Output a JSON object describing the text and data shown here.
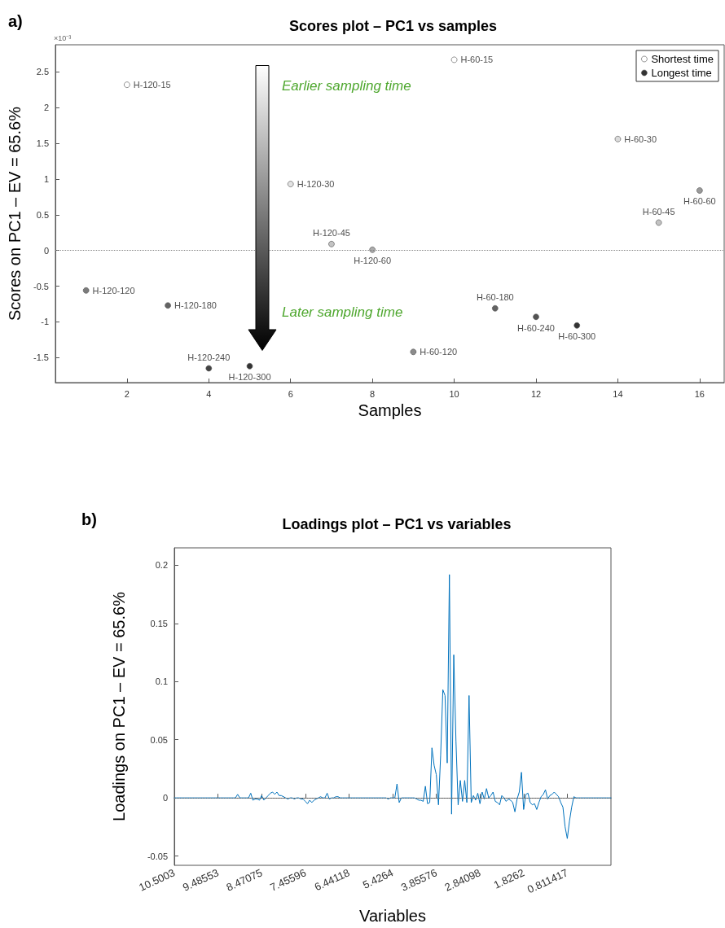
{
  "chart_data": [
    {
      "type": "scatter",
      "title": "Scores plot – PC1 vs samples",
      "xlabel": "Samples",
      "ylabel": "Scores on PC1 – EV = 65.6%",
      "annotations": [
        "a)",
        "×10⁻³",
        "Earlier sampling time",
        "Later sampling time"
      ],
      "series": [
        {
          "name": "Shortest time",
          "color": "#ffffff",
          "x": [
            2,
            10
          ],
          "values": [
            2.32,
            2.67
          ],
          "value_labels": [
            "H-120-15",
            "H-60-15"
          ]
        },
        {
          "name": "Longest time",
          "color": "#000000",
          "x": [
            5,
            13
          ],
          "values": [
            -1.62,
            -1.05
          ],
          "value_labels": [
            "H-120-300",
            "H-60-300"
          ]
        },
        {
          "x": [
            1,
            3,
            4,
            6,
            7,
            8,
            9,
            11,
            12,
            14,
            15,
            16
          ],
          "values": [
            -0.56,
            -0.77,
            -1.65,
            0.93,
            0.09,
            0.01,
            -1.42,
            -0.81,
            -0.93,
            1.56,
            0.39,
            0.84
          ],
          "colors": [
            "#5a5a5a",
            "#3c3c3c",
            "#141414",
            "#dcdcdc",
            "#b4b4b4",
            "#969696",
            "#6e6e6e",
            "#3c3c3c",
            "#282828",
            "#d2d2d2",
            "#b4b4b4",
            "#828282"
          ],
          "value_labels": [
            "H-120-120",
            "H-120-180",
            "H-120-240",
            "H-120-30",
            "H-120-45",
            "H-120-60",
            "H-60-120",
            "H-60-180",
            "H-60-240",
            "H-60-30",
            "H-60-45",
            "H-60-60"
          ]
        }
      ],
      "xlim": [
        0.25,
        16.6
      ],
      "xticks": [
        2,
        4,
        6,
        8,
        10,
        12,
        14,
        16
      ],
      "ylim": [
        -1.85,
        2.88
      ],
      "yticks": [
        -1.5,
        -1,
        -0.5,
        0,
        0.5,
        1,
        1.5,
        2,
        2.5
      ],
      "ref_lines": [
        {
          "axis": "y",
          "value": 0,
          "color": "#808080",
          "line_style": "dotted"
        }
      ],
      "marker": "circle",
      "legend": "top right",
      "grid": false
    },
    {
      "type": "line",
      "title": "Loadings plot – PC1 vs variables",
      "xlabel": "Variables",
      "ylabel": "Loadings on PC1 – EV = 65.6%",
      "annotations": [
        "b)"
      ],
      "categories": [
        "10.5003",
        null,
        null,
        null,
        null,
        null,
        null,
        null,
        null,
        null,
        null,
        null,
        null,
        null,
        null,
        null,
        null,
        null,
        null,
        null,
        "9.48553",
        null,
        null,
        null,
        null,
        null,
        null,
        null,
        null,
        null,
        null,
        null,
        null,
        null,
        null,
        null,
        null,
        null,
        null,
        null,
        "8.47075",
        null,
        null,
        null,
        null,
        null,
        null,
        null,
        null,
        null,
        null,
        null,
        null,
        null,
        null,
        null,
        null,
        null,
        null,
        null,
        "7.45596",
        null,
        null,
        null,
        null,
        null,
        null,
        null,
        null,
        null,
        null,
        null,
        null,
        null,
        null,
        null,
        null,
        null,
        null,
        null,
        "6.44118",
        null,
        null,
        null,
        null,
        null,
        null,
        null,
        null,
        null,
        null,
        null,
        null,
        null,
        null,
        null,
        null,
        null,
        null,
        null,
        "5.4264",
        null,
        null,
        null,
        null,
        null,
        null,
        null,
        null,
        null,
        null,
        null,
        null,
        null,
        null,
        null,
        null,
        null,
        null,
        null,
        "3.85576",
        null,
        null,
        null,
        null,
        null,
        null,
        null,
        null,
        null,
        null,
        null,
        null,
        null,
        null,
        null,
        null,
        null,
        null,
        null,
        "2.84098",
        null,
        null,
        null,
        null,
        null,
        null,
        null,
        null,
        null,
        null,
        null,
        null,
        null,
        null,
        null,
        null,
        null,
        null,
        null,
        "1.8262",
        null,
        null,
        null,
        null,
        null,
        null,
        null,
        null,
        null,
        null,
        null,
        null,
        null,
        null,
        null,
        null,
        null,
        null,
        null,
        "0.811417",
        null,
        null,
        null,
        null,
        null,
        null,
        null,
        null,
        null,
        null,
        null,
        null,
        null,
        null,
        null,
        null,
        null,
        null,
        null,
        null
      ],
      "series": [
        {
          "color": "#0072bd",
          "values": [
            0,
            0,
            0,
            0,
            0,
            0,
            0,
            0,
            0,
            0,
            0,
            0,
            0,
            0,
            0,
            0,
            0,
            0,
            0,
            0,
            0,
            0,
            0,
            0,
            0,
            0,
            0,
            0,
            0,
            0.003,
            0,
            0,
            0,
            0,
            0,
            0.004,
            -0.002,
            -0.001,
            -0.001,
            -0.002,
            0.002,
            -0.002,
            0,
            0.002,
            0.004,
            0.005,
            0.003,
            0.005,
            0.002,
            0.002,
            0.001,
            0,
            -0.001,
            0,
            0,
            -0.001,
            0,
            0,
            -0.001,
            -0.001,
            -0.003,
            -0.005,
            -0.002,
            -0.004,
            -0.002,
            -0.001,
            0,
            0.001,
            0,
            0,
            0.004,
            -0.001,
            0,
            0,
            0.001,
            0.001,
            0,
            0,
            0,
            0,
            0,
            0,
            0,
            0,
            0,
            0,
            0,
            0,
            0,
            0,
            0,
            0,
            0,
            0,
            0,
            0,
            0,
            0,
            -0.001,
            0,
            0,
            0,
            0.012,
            -0.004,
            0,
            0,
            0,
            0,
            0,
            0,
            0,
            -0.001,
            -0.002,
            -0.002,
            -0.003,
            0.01,
            -0.005,
            -0.004,
            0.043,
            0.028,
            0.02,
            -0.006,
            0.037,
            0.093,
            0.088,
            0.03,
            0.192,
            -0.014,
            0.123,
            0.049,
            -0.006,
            0.015,
            -0.003,
            0.015,
            -0.004,
            0.088,
            -0.004,
            0.002,
            -0.002,
            0.004,
            -0.005,
            0.005,
            -0.001,
            0.008,
            0,
            0.002,
            0.005,
            -0.003,
            -0.004,
            -0.006,
            0.002,
            0,
            -0.003,
            -0.001,
            -0.002,
            -0.004,
            -0.012,
            -0.001,
            0.005,
            0.022,
            -0.01,
            0.003,
            0.004,
            -0.004,
            -0.006,
            -0.005,
            -0.01,
            -0.004,
            0.001,
            0.003,
            0.007,
            -0.001,
            0.002,
            0.003,
            0.005,
            0.003,
            0.001,
            -0.004,
            -0.008,
            -0.025,
            -0.035,
            -0.02,
            -0.008,
            0.001,
            0,
            0,
            0,
            0,
            0,
            0,
            0,
            0,
            0,
            0,
            0,
            0,
            0,
            0,
            0,
            0,
            0
          ]
        }
      ],
      "ylim": [
        -0.058,
        0.215
      ],
      "yticks": [
        -0.05,
        0,
        0.05,
        0.1,
        0.15,
        0.2
      ],
      "ref_lines": [
        {
          "axis": "y",
          "value": 0,
          "color": "#808080",
          "line_style": "dotted"
        }
      ],
      "marker": "none",
      "line_style": "solid",
      "legend": false,
      "grid": false
    }
  ]
}
